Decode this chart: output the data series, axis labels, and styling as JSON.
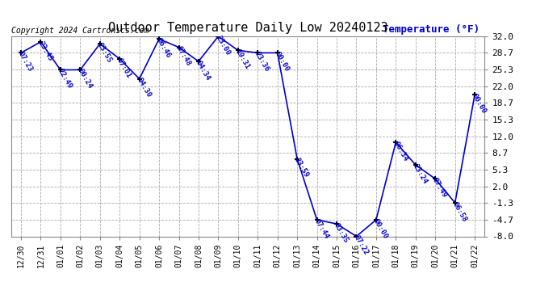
{
  "title": "Outdoor Temperature Daily Low 20240123",
  "ylabel": "Temperature (°F)",
  "copyright": "Copyright 2024 Cartronics.com",
  "background_color": "#ffffff",
  "line_color": "#0000cc",
  "text_color": "#0000cc",
  "grid_color": "#aaaaaa",
  "x_labels": [
    "12/30",
    "12/31",
    "01/01",
    "01/02",
    "01/03",
    "01/04",
    "01/05",
    "01/06",
    "01/07",
    "01/08",
    "01/09",
    "01/10",
    "01/11",
    "01/12",
    "01/13",
    "01/14",
    "01/15",
    "01/16",
    "01/17",
    "01/18",
    "01/19",
    "01/20",
    "01/21",
    "01/22"
  ],
  "data_points": [
    {
      "x": 0,
      "temp": 28.7,
      "time": "07:23"
    },
    {
      "x": 1,
      "temp": 30.9,
      "time": "23:45"
    },
    {
      "x": 2,
      "temp": 25.3,
      "time": "22:49"
    },
    {
      "x": 3,
      "temp": 25.3,
      "time": "00:24"
    },
    {
      "x": 4,
      "temp": 30.5,
      "time": "23:55"
    },
    {
      "x": 5,
      "temp": 27.5,
      "time": "07:01"
    },
    {
      "x": 6,
      "temp": 23.5,
      "time": "04:30"
    },
    {
      "x": 7,
      "temp": 31.5,
      "time": "06:46"
    },
    {
      "x": 8,
      "temp": 29.8,
      "time": "07:48"
    },
    {
      "x": 9,
      "temp": 27.0,
      "time": "04:34"
    },
    {
      "x": 10,
      "temp": 32.0,
      "time": "23:00"
    },
    {
      "x": 11,
      "temp": 29.2,
      "time": "19:31"
    },
    {
      "x": 12,
      "temp": 28.7,
      "time": "23:36"
    },
    {
      "x": 13,
      "temp": 28.7,
      "time": "00:00"
    },
    {
      "x": 14,
      "temp": 7.5,
      "time": "23:59"
    },
    {
      "x": 15,
      "temp": -4.7,
      "time": "07:44"
    },
    {
      "x": 16,
      "temp": -5.5,
      "time": "03:35"
    },
    {
      "x": 17,
      "temp": -8.0,
      "time": "07:22"
    },
    {
      "x": 18,
      "temp": -4.7,
      "time": "00:00"
    },
    {
      "x": 19,
      "temp": 10.8,
      "time": "06:34"
    },
    {
      "x": 20,
      "temp": 6.3,
      "time": "23:24"
    },
    {
      "x": 21,
      "temp": 3.5,
      "time": "07:49"
    },
    {
      "x": 22,
      "temp": -1.3,
      "time": "06:58"
    },
    {
      "x": 23,
      "temp": 20.3,
      "time": "00:00"
    }
  ],
  "ylim": [
    -8.0,
    32.0
  ],
  "yticks": [
    -8.0,
    -4.7,
    -1.3,
    2.0,
    5.3,
    8.7,
    12.0,
    15.3,
    18.7,
    22.0,
    25.3,
    28.7,
    32.0
  ],
  "marker_size": 4,
  "line_width": 1.2,
  "figsize": [
    6.9,
    3.75
  ],
  "dpi": 100
}
